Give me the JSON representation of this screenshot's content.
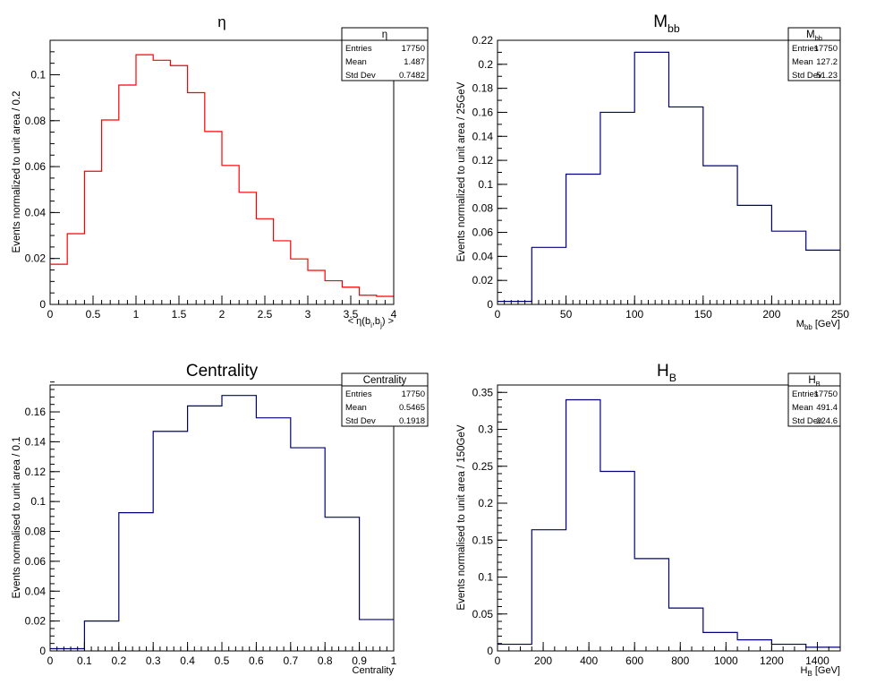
{
  "chart_data": [
    {
      "type": "histogram",
      "title": "η",
      "xlabel": "< η(b_i,b_j) >",
      "xlabel_parts": {
        "pre": "< η(b",
        "sub1": "i",
        "mid": ",b",
        "sub2": "j",
        "post": ") >"
      },
      "ylabel": "Events normalized to unit area / 0.2",
      "xlim": [
        0,
        4
      ],
      "ylim": [
        0,
        0.115
      ],
      "x_major_ticks": [
        0,
        0.5,
        1,
        1.5,
        2,
        2.5,
        3,
        3.5,
        4
      ],
      "x_tick_labels": [
        "0",
        "0.5",
        "1",
        "1.5",
        "2",
        "2.5",
        "3",
        "3.5",
        "4"
      ],
      "x_minor_step": 0.1,
      "y_major_ticks": [
        0,
        0.02,
        0.04,
        0.06,
        0.08,
        0.1
      ],
      "y_tick_labels": [
        "0",
        "0.02",
        "0.04",
        "0.06",
        "0.08",
        "0.1"
      ],
      "y_minor_step": 0.005,
      "bin_edges": [
        0,
        0.2,
        0.4,
        0.6,
        0.8,
        1.0,
        1.2,
        1.4,
        1.6,
        1.8,
        2.0,
        2.2,
        2.4,
        2.6,
        2.8,
        3.0,
        3.2,
        3.4,
        3.6,
        3.8,
        4.0
      ],
      "values": [
        0.0175,
        0.0308,
        0.058,
        0.0803,
        0.0955,
        0.1087,
        0.1063,
        0.104,
        0.0922,
        0.0753,
        0.0605,
        0.0488,
        0.0373,
        0.0277,
        0.0198,
        0.0148,
        0.0103,
        0.0075,
        0.004,
        0.0035
      ],
      "color": "#ff0000",
      "stats": {
        "name": "η",
        "name_parts": {
          "base": "η",
          "sub": ""
        },
        "entries": "17750",
        "mean": "1.487",
        "std_dev": "0.7482"
      }
    },
    {
      "type": "histogram",
      "title": "M_bb",
      "title_parts": {
        "base": "M",
        "sub": "bb"
      },
      "xlabel": "M_bb [GeV]",
      "xlabel_parts": {
        "base": "M",
        "sub": "bb",
        "post": " [GeV]"
      },
      "ylabel": "Events normalized to unit area / 25GeV",
      "xlim": [
        0,
        250
      ],
      "ylim": [
        0,
        0.22
      ],
      "x_major_ticks": [
        0,
        50,
        100,
        150,
        200,
        250
      ],
      "x_tick_labels": [
        "0",
        "50",
        "100",
        "150",
        "200",
        "250"
      ],
      "x_minor_step": 5,
      "y_major_ticks": [
        0,
        0.02,
        0.04,
        0.06,
        0.08,
        0.1,
        0.12,
        0.14,
        0.16,
        0.18,
        0.2,
        0.22
      ],
      "y_tick_labels": [
        "0",
        "0.02",
        "0.04",
        "0.06",
        "0.08",
        "0.1",
        "0.12",
        "0.14",
        "0.16",
        "0.18",
        "0.2",
        "0.22"
      ],
      "y_minor_step": 0.01,
      "bin_edges": [
        0,
        25,
        50,
        75,
        100,
        125,
        150,
        175,
        200,
        225,
        250
      ],
      "values": [
        0.0025,
        0.0475,
        0.1085,
        0.16,
        0.21,
        0.1645,
        0.1155,
        0.0825,
        0.061,
        0.0452
      ],
      "color": "#00007f",
      "stats": {
        "name": "M_bb",
        "name_parts": {
          "base": "M",
          "sub": "bb"
        },
        "entries": "17750",
        "mean": "127.2",
        "std_dev": "51.23"
      }
    },
    {
      "type": "histogram",
      "title": "Centrality",
      "xlabel": "Centrality",
      "ylabel": "Events normalised to unit area / 0.1",
      "xlim": [
        0,
        1
      ],
      "ylim": [
        0,
        0.178
      ],
      "x_major_ticks": [
        0,
        0.1,
        0.2,
        0.3,
        0.4,
        0.5,
        0.6,
        0.7,
        0.8,
        0.9,
        1
      ],
      "x_tick_labels": [
        "0",
        "0.1",
        "0.2",
        "0.3",
        "0.4",
        "0.5",
        "0.6",
        "0.7",
        "0.8",
        "0.9",
        "1"
      ],
      "x_minor_step": 0.02,
      "y_major_ticks": [
        0,
        0.02,
        0.04,
        0.06,
        0.08,
        0.1,
        0.12,
        0.14,
        0.16
      ],
      "y_tick_labels": [
        "0",
        "0.02",
        "0.04",
        "0.06",
        "0.08",
        "0.1",
        "0.12",
        "0.14",
        "0.16"
      ],
      "y_minor_step": 0.005,
      "bin_edges": [
        0,
        0.1,
        0.2,
        0.3,
        0.4,
        0.5,
        0.6,
        0.7,
        0.8,
        0.9,
        1.0
      ],
      "values": [
        0.0015,
        0.02,
        0.0925,
        0.147,
        0.164,
        0.171,
        0.156,
        0.136,
        0.0895,
        0.021
      ],
      "color": "#00007f",
      "stats": {
        "name": "Centrality",
        "name_parts": {
          "base": "Centrality",
          "sub": ""
        },
        "entries": "17750",
        "mean": "0.5465",
        "std_dev": "0.1918"
      }
    },
    {
      "type": "histogram",
      "title": "H_B",
      "title_parts": {
        "base": "H",
        "sub": "B"
      },
      "xlabel": "H_B [GeV]",
      "xlabel_parts": {
        "base": "H",
        "sub": "B",
        "post": " [GeV]"
      },
      "ylabel": "Events normalised to unit area / 150GeV",
      "xlim": [
        0,
        1500
      ],
      "ylim": [
        0,
        0.36
      ],
      "x_major_ticks": [
        0,
        200,
        400,
        600,
        800,
        1000,
        1200,
        1400
      ],
      "x_tick_labels": [
        "0",
        "200",
        "400",
        "600",
        "800",
        "1000",
        "1200",
        "1400"
      ],
      "x_minor_step": 50,
      "y_major_ticks": [
        0,
        0.05,
        0.1,
        0.15,
        0.2,
        0.25,
        0.3,
        0.35
      ],
      "y_tick_labels": [
        "0",
        "0.05",
        "0.1",
        "0.15",
        "0.2",
        "0.25",
        "0.3",
        "0.35"
      ],
      "y_minor_step": 0.01,
      "bin_edges": [
        0,
        150,
        300,
        450,
        600,
        750,
        900,
        1050,
        1200,
        1350,
        1500
      ],
      "values": [
        0.009,
        0.164,
        0.34,
        0.243,
        0.125,
        0.058,
        0.025,
        0.015,
        0.009,
        0.005
      ],
      "color": "#00007f",
      "stats": {
        "name": "H_B",
        "name_parts": {
          "base": "H",
          "sub": "B"
        },
        "entries": "17750",
        "mean": "491.4",
        "std_dev": "224.6"
      }
    }
  ],
  "stats_labels": {
    "entries": "Entries",
    "mean": "Mean",
    "std_dev": "Std Dev"
  }
}
